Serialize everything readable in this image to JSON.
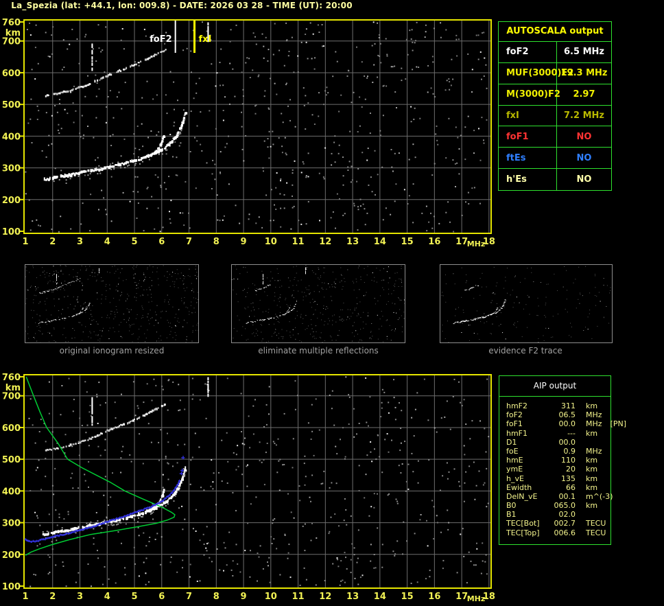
{
  "header": {
    "title": "La_Spezia (lat: +44.1, lon: 009.8) - DATE: 2026 03 28 - TIME (UT): 20:00"
  },
  "colors": {
    "background": "#000000",
    "title_yellow": "#ffffa2",
    "axis_yellow": "#f2f254",
    "plot_border": "#e6e600",
    "grid_gray": "#6e6e6e",
    "echo_white": "#ffffff",
    "echo_gray": "#9a9a9a",
    "marker_foF2": "#ffffff",
    "marker_fxI": "#ffff00",
    "profile_green": "#00cc33",
    "trace_blue": "#3232e0",
    "table_border_green": "#2ee22e",
    "caption_gray": "#a2a2a2",
    "aip_text": "#f5f58d"
  },
  "autoscala_table": {
    "title": "AUTOSCALA output",
    "rows": [
      {
        "label": "foF2",
        "value": "6.5 MHz",
        "color": "#ffffff"
      },
      {
        "label": "MUF(3000)F2",
        "value": "19.3 MHz",
        "color": "#f0f000"
      },
      {
        "label": "M(3000)F2",
        "value": "2.97",
        "color": "#f0f000"
      },
      {
        "label": "fxI",
        "value": "7.2 MHz",
        "color": "#b9b900"
      },
      {
        "label": "foF1",
        "value": "NO",
        "color": "#ff3333"
      },
      {
        "label": "ftEs",
        "value": "NO",
        "color": "#2f7fff"
      },
      {
        "label": "h'Es",
        "value": "NO",
        "color": "#ffffaa"
      }
    ]
  },
  "aip_table": {
    "title": "AIP output",
    "rows": [
      {
        "label": "hmF2",
        "value": "311",
        "unit": "km",
        "extra": ""
      },
      {
        "label": "foF2",
        "value": "06.5",
        "unit": "MHz",
        "extra": ""
      },
      {
        "label": "foF1",
        "value": "00.0",
        "unit": "MHz",
        "extra": "[PN]"
      },
      {
        "label": "hmF1",
        "value": "---",
        "unit": "km",
        "extra": ""
      },
      {
        "label": "D1",
        "value": "00.0",
        "unit": "",
        "extra": ""
      },
      {
        "label": "foE",
        "value": "0.9",
        "unit": "MHz",
        "extra": ""
      },
      {
        "label": "hmE",
        "value": "110",
        "unit": "km",
        "extra": ""
      },
      {
        "label": "ymE",
        "value": "20",
        "unit": "km",
        "extra": ""
      },
      {
        "label": "h_vE",
        "value": "135",
        "unit": "km",
        "extra": ""
      },
      {
        "label": "Ewidth",
        "value": "66",
        "unit": "km",
        "extra": ""
      },
      {
        "label": "DelN_vE",
        "value": "00.1",
        "unit": "m^(-3)",
        "extra": ""
      },
      {
        "label": "B0",
        "value": "065.0",
        "unit": "km",
        "extra": ""
      },
      {
        "label": "B1",
        "value": "02.0",
        "unit": "",
        "extra": ""
      },
      {
        "label": "TEC[Bot]",
        "value": "002.7",
        "unit": "TECU",
        "extra": ""
      },
      {
        "label": "TEC[Top]",
        "value": "006.6",
        "unit": "TECU",
        "extra": ""
      }
    ]
  },
  "chart_data": {
    "type": "scatter",
    "xlabel": "MHz",
    "ylabel": "km",
    "xlim": [
      1,
      18
    ],
    "ylim": [
      100,
      760
    ],
    "x_ticks": [
      1,
      2,
      3,
      4,
      5,
      6,
      7,
      8,
      9,
      10,
      11,
      12,
      13,
      14,
      15,
      16,
      17,
      18
    ],
    "y_ticks": [
      760,
      700,
      600,
      500,
      400,
      300,
      200,
      100
    ],
    "grid": true,
    "plots": [
      {
        "name": "scaled ionogram with AUTOSCALA markers"
      },
      {
        "name": "ionogram with AIP restored trace and electron density profile"
      }
    ],
    "markers": [
      {
        "name": "foF2",
        "label": "foF2",
        "mhz": 6.5
      },
      {
        "name": "fxI",
        "label": "fxI",
        "mhz": 7.2
      }
    ],
    "series": {
      "f2_echo": [
        [
          1.65,
          262
        ],
        [
          1.9,
          266
        ],
        [
          2.2,
          271
        ],
        [
          2.6,
          277
        ],
        [
          3.0,
          284
        ],
        [
          3.4,
          291
        ],
        [
          3.8,
          297
        ],
        [
          4.2,
          305
        ],
        [
          4.6,
          313
        ],
        [
          5.0,
          322
        ],
        [
          5.3,
          330
        ],
        [
          5.6,
          340
        ],
        [
          5.9,
          352
        ],
        [
          6.15,
          365
        ],
        [
          6.35,
          380
        ],
        [
          6.5,
          396
        ],
        [
          6.62,
          414
        ],
        [
          6.72,
          432
        ],
        [
          6.8,
          452
        ],
        [
          6.88,
          475
        ]
      ],
      "x_branch": [
        [
          5.45,
          335
        ],
        [
          5.65,
          343
        ],
        [
          5.8,
          353
        ],
        [
          5.92,
          366
        ],
        [
          6.0,
          381
        ],
        [
          6.05,
          394
        ],
        [
          6.08,
          405
        ]
      ],
      "second_hop": [
        [
          1.75,
          527
        ],
        [
          2.1,
          533
        ],
        [
          2.5,
          541
        ],
        [
          2.9,
          551
        ],
        [
          3.3,
          562
        ],
        [
          3.6,
          573
        ],
        [
          3.9,
          586
        ],
        [
          4.2,
          597
        ],
        [
          4.5,
          607
        ],
        [
          4.8,
          617
        ],
        [
          5.1,
          628
        ],
        [
          5.4,
          641
        ],
        [
          5.7,
          654
        ],
        [
          6.0,
          667
        ],
        [
          6.2,
          676
        ]
      ],
      "second_hop_remnant": [
        [
          2.7,
          548
        ],
        [
          3.0,
          556
        ],
        [
          3.3,
          566
        ],
        [
          3.6,
          577
        ],
        [
          3.9,
          590
        ],
        [
          4.2,
          600
        ]
      ],
      "vertical_strips": [
        [
          3.45,
          612,
          697
        ],
        [
          7.7,
          703,
          760
        ]
      ],
      "restored_trace_blue": [
        [
          1.0,
          246
        ],
        [
          1.15,
          240
        ],
        [
          1.35,
          241
        ],
        [
          1.6,
          246
        ],
        [
          2.0,
          255
        ],
        [
          2.4,
          263
        ],
        [
          2.8,
          272
        ],
        [
          3.2,
          281
        ],
        [
          3.6,
          291
        ],
        [
          4.0,
          303
        ],
        [
          4.4,
          314
        ],
        [
          4.8,
          325
        ],
        [
          5.2,
          337
        ],
        [
          5.6,
          350
        ],
        [
          5.9,
          363
        ],
        [
          6.15,
          377
        ],
        [
          6.35,
          392
        ],
        [
          6.5,
          408
        ],
        [
          6.6,
          423
        ],
        [
          6.67,
          437
        ]
      ],
      "blue_isolated": [
        [
          6.72,
          455
        ],
        [
          6.75,
          465
        ],
        [
          6.78,
          505
        ]
      ],
      "density_profile_green": [
        [
          1.03,
          760
        ],
        [
          1.3,
          700
        ],
        [
          1.53,
          650
        ],
        [
          1.78,
          600
        ],
        [
          2.2,
          550
        ],
        [
          2.55,
          500
        ],
        [
          3.1,
          472
        ],
        [
          3.6,
          450
        ],
        [
          4.1,
          428
        ],
        [
          4.65,
          400
        ],
        [
          5.3,
          375
        ],
        [
          5.98,
          350
        ],
        [
          6.35,
          333
        ],
        [
          6.48,
          325
        ],
        [
          6.45,
          317
        ],
        [
          6.2,
          308
        ],
        [
          5.8,
          298
        ],
        [
          5.1,
          287
        ],
        [
          4.3,
          275
        ],
        [
          3.4,
          263
        ],
        [
          2.6,
          246
        ],
        [
          1.95,
          230
        ],
        [
          1.5,
          217
        ],
        [
          1.2,
          207
        ],
        [
          1.0,
          197
        ]
      ]
    },
    "thumbnails": [
      {
        "caption": "original ionogram resized",
        "series": [
          "f2_echo",
          "x_branch",
          "second_hop",
          "vertical_strips"
        ],
        "noise": 500
      },
      {
        "caption": "eliminate multiple reflections",
        "series": [
          "f2_echo",
          "x_branch",
          "second_hop_remnant",
          "vertical_strips"
        ],
        "noise": 430
      },
      {
        "caption": "evidence F2 trace",
        "series": [
          "f2_echo",
          "x_branch",
          "second_hop_remnant"
        ],
        "noise": 170
      }
    ]
  }
}
